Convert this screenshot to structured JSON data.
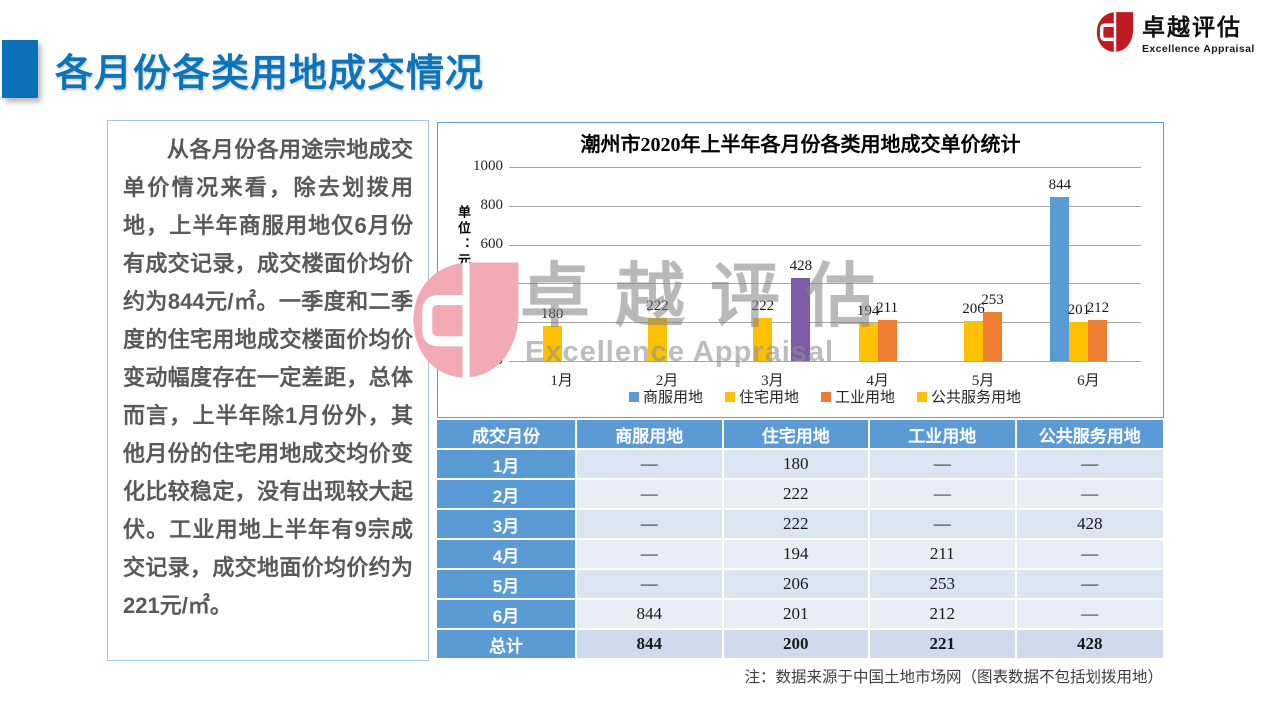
{
  "header": {
    "title": "各月份各类用地成交情况"
  },
  "logo": {
    "name": "卓越评估",
    "subtitle": "Excellence Appraisal"
  },
  "analysis_text": "从各月份各用途宗地成交单价情况来看，除去划拨用地，上半年商服用地仅6月份有成交记录，成交楼面价均价约为844元/㎡。一季度和二季度的住宅用地成交楼面价均价变动幅度存在一定差距，总体而言，上半年除1月份外，其他月份的住宅用地成交均价变化比较稳定，没有出现较大起伏。工业用地上半年有9宗成交记录，成交地面价均价约为221元/㎡。",
  "chart_data": {
    "type": "bar",
    "title": "潮州市2020年上半年各月份各类用地成交单价统计",
    "ylabel": "单位：元/㎡",
    "ylim": [
      0,
      1000
    ],
    "yticks": [
      0,
      200,
      400,
      600,
      800,
      1000
    ],
    "categories": [
      "1月",
      "2月",
      "3月",
      "4月",
      "5月",
      "6月"
    ],
    "grid": true,
    "legend_position": "bottom",
    "series": [
      {
        "key": "commercial",
        "name": "商服用地",
        "color": "#5B9BD5",
        "values": [
          null,
          null,
          null,
          null,
          null,
          844
        ]
      },
      {
        "key": "residential",
        "name": "住宅用地",
        "color": "#FFC000",
        "values": [
          180,
          222,
          222,
          194,
          206,
          201
        ]
      },
      {
        "key": "industrial",
        "name": "工业用地",
        "color": "#ED7D31",
        "values": [
          null,
          null,
          null,
          211,
          253,
          212
        ]
      },
      {
        "key": "public-service",
        "name": "公共服务用地",
        "color": "#7D5BA8",
        "legend_color": "#FFC000",
        "values": [
          null,
          null,
          428,
          null,
          null,
          null
        ]
      }
    ]
  },
  "watermark": {
    "text": "卓越评估",
    "subtext": "Excellence Appraisal"
  },
  "table": {
    "headers": [
      "成交月份",
      "商服用地",
      "住宅用地",
      "工业用地",
      "公共服务用地"
    ],
    "rows": [
      {
        "label": "1月",
        "values": [
          "—",
          "180",
          "—",
          "—"
        ]
      },
      {
        "label": "2月",
        "values": [
          "—",
          "222",
          "—",
          "—"
        ]
      },
      {
        "label": "3月",
        "values": [
          "—",
          "222",
          "—",
          "428"
        ]
      },
      {
        "label": "4月",
        "values": [
          "—",
          "194",
          "211",
          "—"
        ]
      },
      {
        "label": "5月",
        "values": [
          "—",
          "206",
          "253",
          "—"
        ]
      },
      {
        "label": "6月",
        "values": [
          "844",
          "201",
          "212",
          "—"
        ]
      },
      {
        "label": "总计",
        "values": [
          "844",
          "200",
          "221",
          "428"
        ],
        "total": true
      }
    ]
  },
  "note": "注：数据来源于中国土地市场网（图表数据不包括划拨用地）"
}
